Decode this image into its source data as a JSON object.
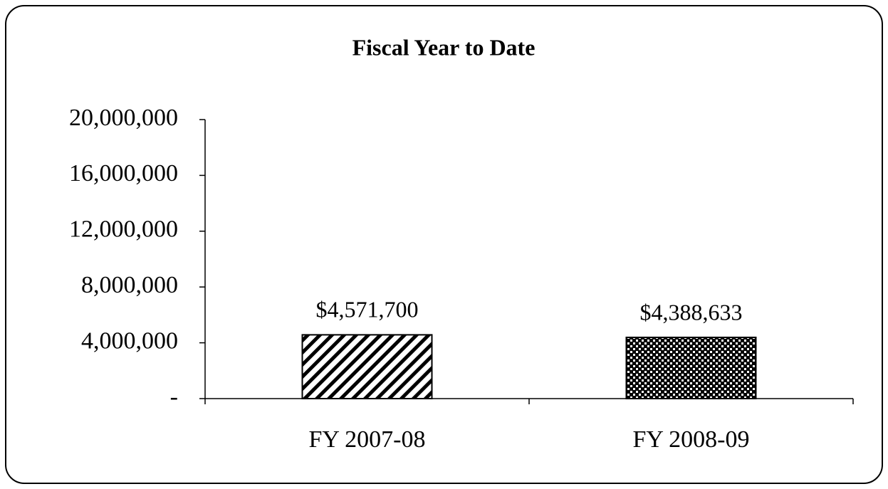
{
  "chart_data": {
    "type": "bar",
    "title": "Fiscal Year to Date",
    "categories": [
      "FY 2007-08",
      "FY 2008-09"
    ],
    "values": [
      4571700,
      4388633
    ],
    "value_labels": [
      "$4,571,700",
      "$4,388,633"
    ],
    "color": "#000000",
    "patterns": [
      "diagonal-hatch",
      "checker"
    ],
    "ylim": [
      0,
      20000000
    ],
    "yticks": [
      {
        "value": 0,
        "label": "-"
      },
      {
        "value": 4000000,
        "label": "4,000,000"
      },
      {
        "value": 8000000,
        "label": "8,000,000"
      },
      {
        "value": 12000000,
        "label": "12,000,000"
      },
      {
        "value": 16000000,
        "label": "16,000,000"
      },
      {
        "value": 20000000,
        "label": "20,000,000"
      }
    ],
    "grid": false
  }
}
